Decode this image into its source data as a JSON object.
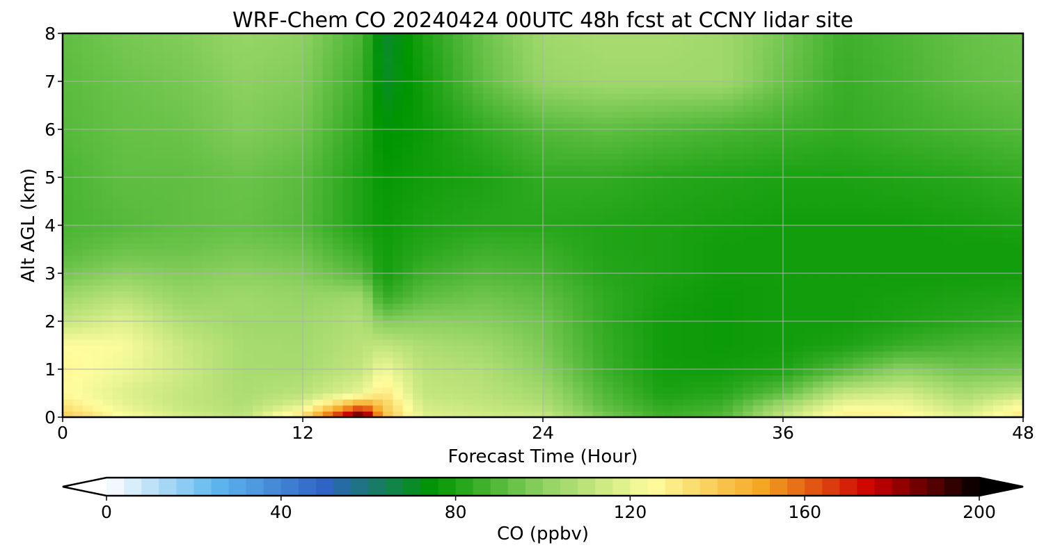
{
  "chart_data": {
    "type": "heatmap",
    "title": "WRF-Chem CO  20240424 00UTC 48h fcst at CCNY lidar site",
    "xlabel": "Forecast Time (Hour)",
    "ylabel": "Alt AGL (km)",
    "xlim": [
      0,
      48
    ],
    "ylim": [
      0,
      8
    ],
    "xticks": [
      "0",
      "12",
      "24",
      "36",
      "48"
    ],
    "yticks": [
      "0",
      "1",
      "2",
      "3",
      "4",
      "5",
      "6",
      "7",
      "8"
    ],
    "grid": true,
    "x": [
      0,
      3,
      6,
      9,
      12,
      15,
      16,
      18,
      21,
      24,
      27,
      30,
      33,
      36,
      39,
      42,
      45,
      48
    ],
    "y": [
      0,
      0.25,
      0.5,
      1,
      1.5,
      2,
      2.5,
      3,
      3.5,
      4,
      5,
      6,
      7,
      8
    ],
    "z": [
      [
        140,
        125,
        116,
        110,
        135,
        200,
        145,
        118,
        115,
        113,
        97,
        86,
        90,
        112,
        130,
        128,
        118,
        132
      ],
      [
        132,
        120,
        112,
        108,
        118,
        155,
        140,
        115,
        112,
        108,
        92,
        83,
        86,
        105,
        122,
        122,
        112,
        125
      ],
      [
        126,
        118,
        112,
        107,
        110,
        120,
        132,
        112,
        110,
        105,
        90,
        80,
        82,
        92,
        112,
        116,
        106,
        112
      ],
      [
        127,
        122,
        114,
        106,
        106,
        112,
        122,
        110,
        108,
        100,
        86,
        78,
        78,
        80,
        90,
        100,
        95,
        96
      ],
      [
        125,
        124,
        113,
        106,
        105,
        110,
        112,
        107,
        104,
        97,
        85,
        78,
        77,
        78,
        80,
        85,
        88,
        90
      ],
      [
        112,
        118,
        108,
        104,
        104,
        108,
        98,
        100,
        99,
        95,
        84,
        78,
        77,
        78,
        78,
        80,
        82,
        84
      ],
      [
        104,
        110,
        102,
        104,
        102,
        104,
        84,
        92,
        95,
        92,
        84,
        79,
        77,
        78,
        78,
        79,
        80,
        81
      ],
      [
        95,
        100,
        98,
        100,
        98,
        90,
        78,
        86,
        90,
        88,
        82,
        80,
        78,
        78,
        78,
        78,
        78,
        78
      ],
      [
        90,
        94,
        94,
        96,
        94,
        84,
        78,
        82,
        86,
        85,
        81,
        80,
        78,
        78,
        78,
        78,
        78,
        78
      ],
      [
        88,
        90,
        92,
        93,
        90,
        80,
        77,
        80,
        82,
        82,
        81,
        80,
        79,
        78,
        78,
        78,
        79,
        80
      ],
      [
        88,
        92,
        92,
        94,
        91,
        80,
        76,
        78,
        80,
        84,
        84,
        82,
        81,
        80,
        80,
        81,
        82,
        84
      ],
      [
        90,
        93,
        94,
        98,
        95,
        82,
        74,
        77,
        84,
        90,
        92,
        90,
        88,
        86,
        84,
        86,
        88,
        90
      ],
      [
        91,
        94,
        96,
        100,
        98,
        85,
        70,
        78,
        92,
        102,
        104,
        104,
        104,
        94,
        85,
        88,
        92,
        94
      ],
      [
        92,
        96,
        98,
        102,
        100,
        88,
        68,
        80,
        94,
        104,
        106,
        106,
        104,
        96,
        86,
        89,
        93,
        95
      ]
    ],
    "colorbar": {
      "label": "CO  (ppbv)",
      "min": 0,
      "max": 200,
      "extend": "both",
      "ticks": [
        "0",
        "40",
        "80",
        "120",
        "160",
        "200"
      ],
      "colors": [
        "#ffffff",
        "#5fb7ee",
        "#2f63c4",
        "#009600",
        "#8dd161",
        "#fffd9e",
        "#f5a623",
        "#cc0000",
        "#000000"
      ]
    }
  }
}
